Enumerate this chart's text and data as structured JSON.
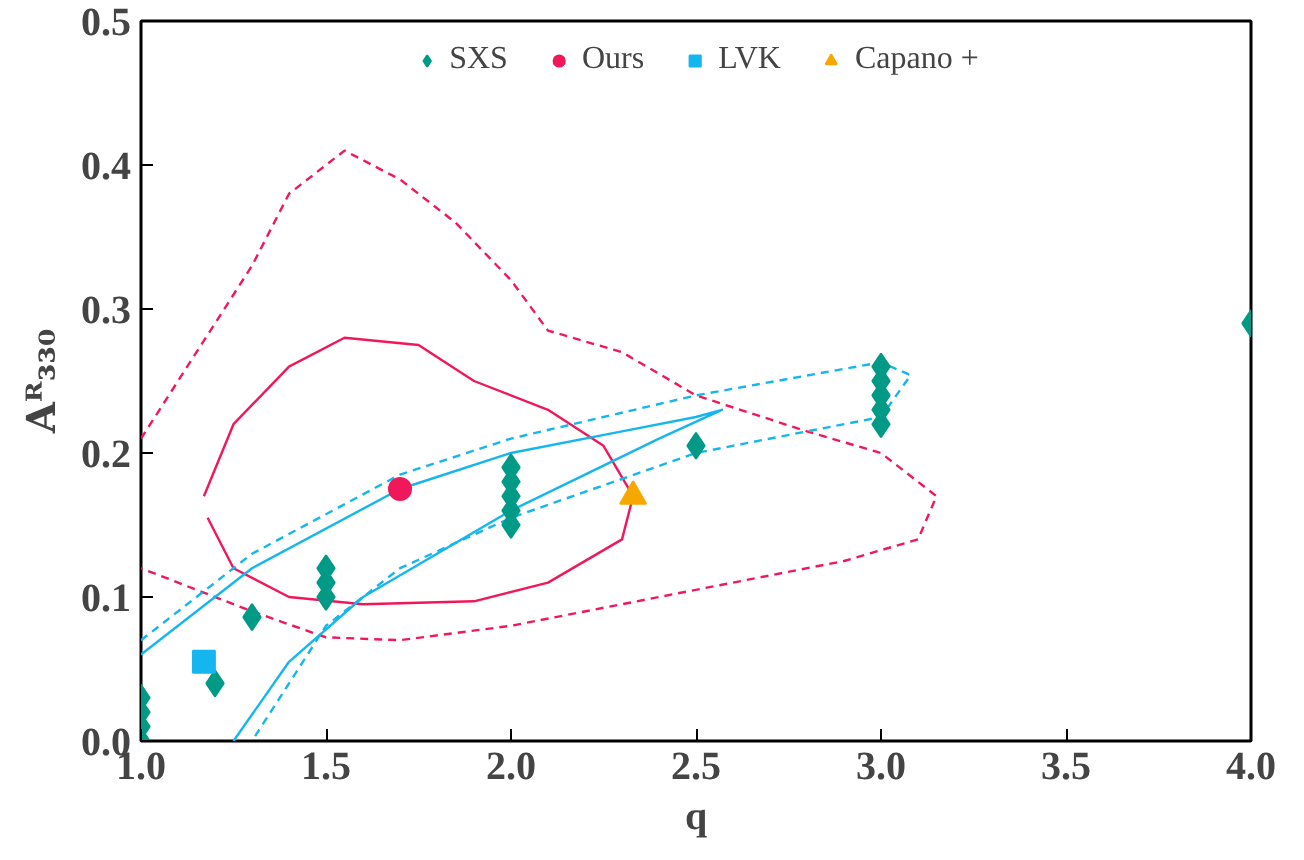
{
  "chart_data": {
    "type": "scatter",
    "xlabel": "q",
    "ylabel": "Aᴿ₃₃₀",
    "xlim": [
      1.0,
      4.0
    ],
    "ylim": [
      0.0,
      0.5
    ],
    "xticks": [
      {
        "value": 1,
        "label": "1.0"
      },
      {
        "value": 1.5,
        "label": "1.5"
      },
      {
        "value": 2,
        "label": "2.0"
      },
      {
        "value": 2.5,
        "label": "2.5"
      },
      {
        "value": 3,
        "label": "3.0"
      },
      {
        "value": 3.5,
        "label": "3.5"
      },
      {
        "value": 4,
        "label": "4.0"
      }
    ],
    "yticks": [
      {
        "value": 0,
        "label": "0.0"
      },
      0.1,
      0.2,
      0.3,
      0.4,
      0.5
    ],
    "grid": false,
    "legend": "top",
    "series": [
      {
        "type": "line",
        "color": "#f0185a",
        "line_style": "dashed",
        "x": [
          1.0,
          1.1,
          1.2,
          1.3,
          1.4,
          1.55,
          1.7,
          1.85,
          2.0,
          2.1,
          2.3,
          2.5,
          2.8,
          3.0,
          3.15,
          3.1,
          2.9,
          2.6,
          2.3,
          2.0,
          1.7,
          1.5,
          1.3,
          1.1,
          1.0
        ],
        "values": [
          0.21,
          0.25,
          0.29,
          0.33,
          0.38,
          0.41,
          0.39,
          0.36,
          0.32,
          0.285,
          0.27,
          0.24,
          0.215,
          0.2,
          0.17,
          0.14,
          0.125,
          0.11,
          0.095,
          0.08,
          0.07,
          0.072,
          0.09,
          0.11,
          0.12
        ]
      },
      {
        "type": "line",
        "color": "#f0185a",
        "line_style": "solid",
        "x": [
          1.17,
          1.25,
          1.4,
          1.55,
          1.75,
          1.9,
          2.1,
          2.25,
          2.33,
          2.3,
          2.1,
          1.9,
          1.6,
          1.4,
          1.25,
          1.18
        ],
        "values": [
          0.17,
          0.22,
          0.26,
          0.28,
          0.275,
          0.25,
          0.23,
          0.205,
          0.17,
          0.14,
          0.11,
          0.097,
          0.095,
          0.1,
          0.12,
          0.155
        ]
      },
      {
        "type": "line",
        "color": "#15b6f0",
        "line_style": "dashed",
        "x": [
          1.0,
          1.3,
          1.7,
          2.0,
          2.5,
          3.0,
          3.08,
          3.0,
          2.5,
          2.0,
          1.7,
          1.5,
          1.3
        ],
        "values": [
          0.07,
          0.13,
          0.185,
          0.21,
          0.24,
          0.263,
          0.254,
          0.225,
          0.2,
          0.155,
          0.12,
          0.08,
          0.0
        ]
      },
      {
        "type": "line",
        "color": "#15b6f0",
        "line_style": "solid",
        "x": [
          1.0,
          1.3,
          1.7,
          2.0,
          2.3,
          2.5,
          2.57,
          2.4,
          2.2,
          2.0,
          1.8,
          1.6,
          1.4,
          1.25
        ],
        "values": [
          0.06,
          0.12,
          0.175,
          0.2,
          0.215,
          0.225,
          0.23,
          0.21,
          0.185,
          0.16,
          0.13,
          0.1,
          0.055,
          0.0
        ]
      },
      {
        "name": "SXS",
        "color": "#009a86",
        "marker": "diamond",
        "x": [
          1,
          1,
          1,
          1,
          1.2,
          1.3,
          1.5,
          1.5,
          1.5,
          2,
          2,
          2,
          2,
          2,
          2.5,
          3,
          3,
          3,
          3,
          3,
          4
        ],
        "values": [
          0.0,
          0.01,
          0.02,
          0.03,
          0.04,
          0.086,
          0.1,
          0.11,
          0.12,
          0.15,
          0.16,
          0.17,
          0.18,
          0.19,
          0.205,
          0.22,
          0.23,
          0.24,
          0.25,
          0.26,
          0.29
        ]
      },
      {
        "name": "Ours",
        "color": "#f0185a",
        "marker": "circle",
        "x": [
          1.7
        ],
        "values": [
          0.175
        ]
      },
      {
        "name": "LVK",
        "color": "#15b6f0",
        "marker": "square",
        "x": [
          1.17
        ],
        "values": [
          0.055
        ]
      },
      {
        "name": "Capano +",
        "color": "#f7a800",
        "marker": "triangle",
        "x": [
          2.33
        ],
        "values": [
          0.17
        ]
      }
    ]
  }
}
